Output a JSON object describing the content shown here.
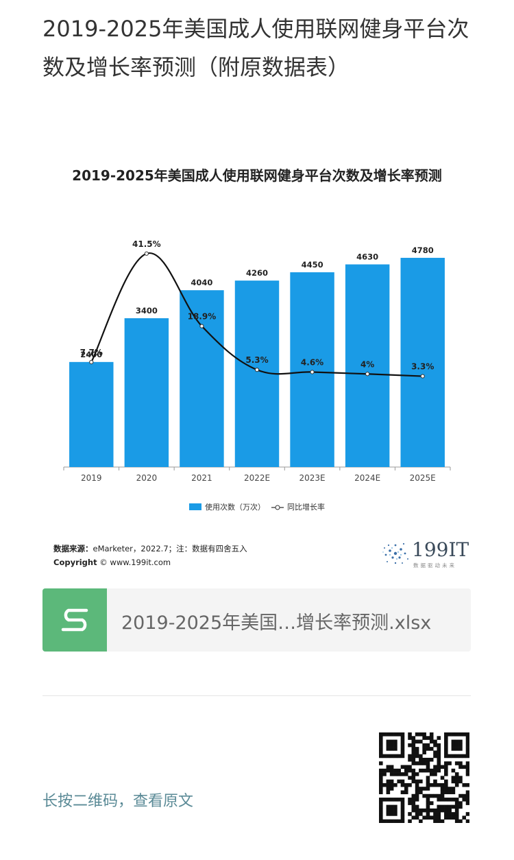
{
  "article": {
    "title": "2019-2025年美国成人使用联网健身平台次数及增长率预测（附原数据表）"
  },
  "chart_data": {
    "type": "bar",
    "title": "2019-2025年美国成人使用联网健身平台次数及增长率预测",
    "categories": [
      "2019",
      "2020",
      "2021",
      "2022E",
      "2023E",
      "2024E",
      "2025E"
    ],
    "series": [
      {
        "name": "使用次数（万次）",
        "type": "bar",
        "color": "#1a9be6",
        "values": [
          2400,
          3400,
          4040,
          4260,
          4450,
          4630,
          4780
        ],
        "labels": [
          "2400",
          "3400",
          "4040",
          "4260",
          "4450",
          "4630",
          "4780"
        ]
      },
      {
        "name": "同比增长率",
        "type": "line",
        "color": "#111111",
        "values": [
          7.7,
          41.5,
          18.9,
          5.3,
          4.6,
          4.0,
          3.3
        ],
        "labels": [
          "7.7%",
          "41.5%",
          "18.9%",
          "5.3%",
          "4.6%",
          "4%",
          "3.3%"
        ]
      }
    ],
    "ylim": [
      0,
      5500
    ],
    "y2lim": [
      -25,
      50
    ],
    "grid": false,
    "legend": "bottom",
    "source_label": "数据来源：",
    "source_text": "eMarketer，2022.7；注：数据有四舍五入",
    "copyright_label": "Copyright",
    "copyright_text": "© www.199it.com"
  },
  "logo": {
    "text": "199IT",
    "subtitle": "数据驱动未来"
  },
  "file_card": {
    "icon": "spreadsheet-icon",
    "name": "2019-2025年美国…增长率预测.xlsx"
  },
  "footer": {
    "qr_hint": "长按二维码，查看原文",
    "qr_icon": "qr-code-icon"
  }
}
